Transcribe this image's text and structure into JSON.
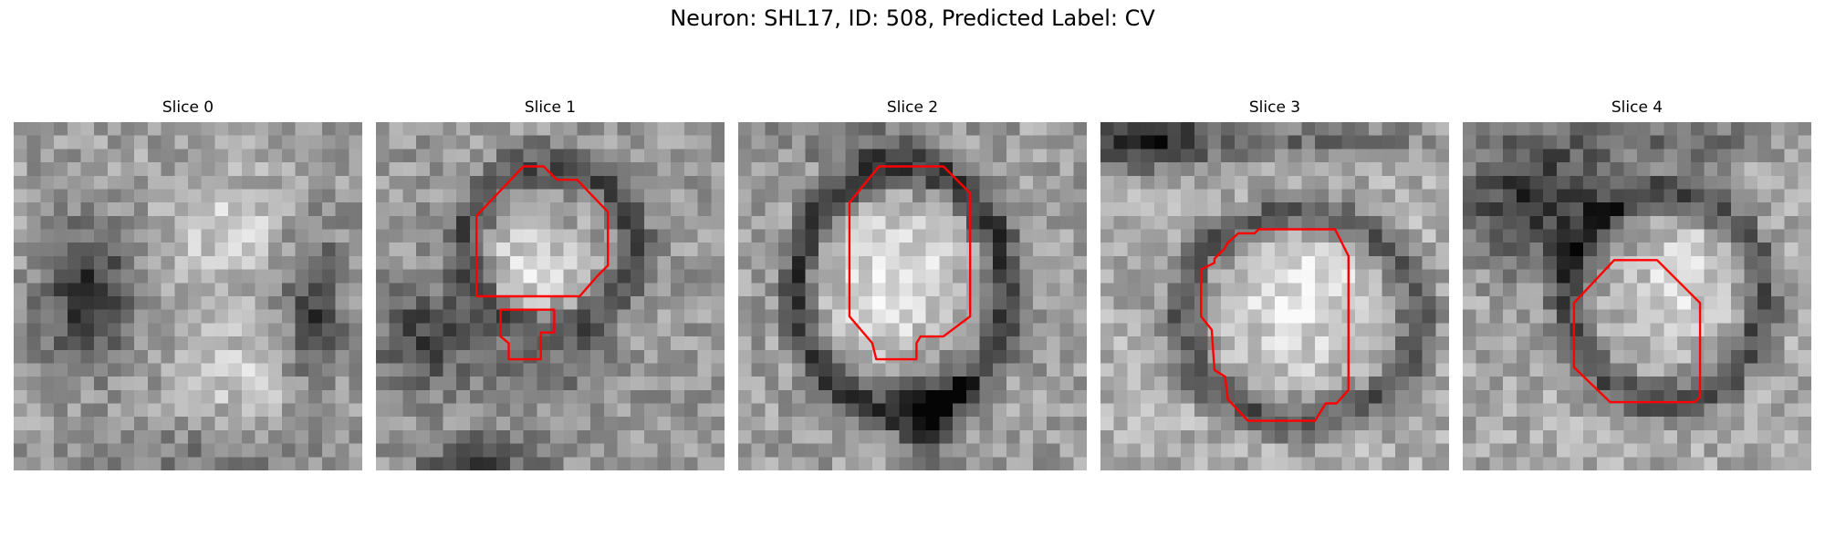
{
  "figure": {
    "title": "Neuron: SHL17, ID: 508, Predicted Label: CV"
  },
  "colors": {
    "contour": "#ff0000",
    "background": "#ffffff",
    "colormap": "grayscale"
  },
  "panels": [
    {
      "title": "Slice 0"
    },
    {
      "title": "Slice 1"
    },
    {
      "title": "Slice 2"
    },
    {
      "title": "Slice 3"
    },
    {
      "title": "Slice 4"
    }
  ]
}
